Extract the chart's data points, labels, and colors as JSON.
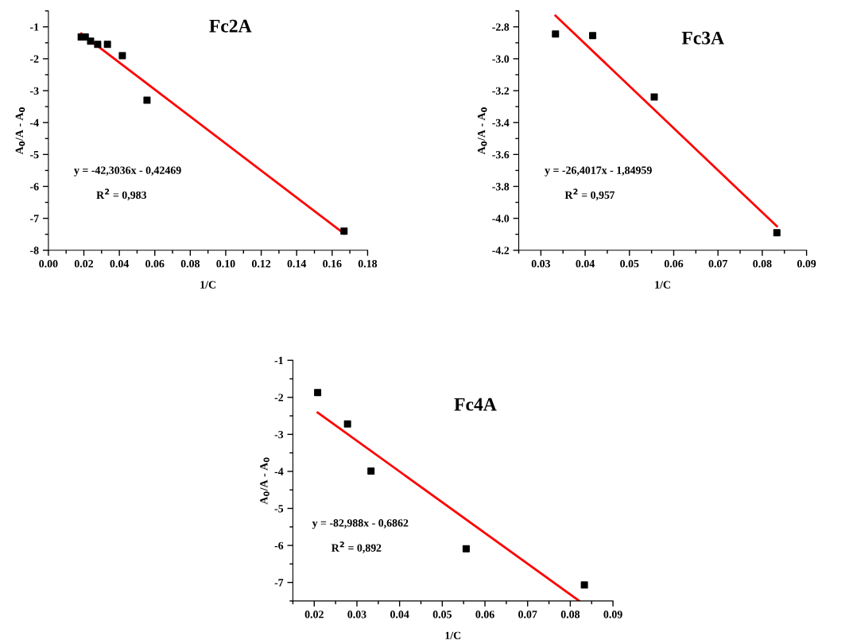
{
  "chart_data": [
    {
      "type": "scatter",
      "title": "Fc2A",
      "xlabel": "1/C",
      "ylabel": "A$_{0}$/A - A$_{0}$",
      "x": [
        0.0185,
        0.0208,
        0.0238,
        0.0278,
        0.0333,
        0.0417,
        0.0556,
        0.1667
      ],
      "series": [
        {
          "marker": "square",
          "color": "#000000",
          "values": [
            -1.32,
            -1.32,
            -1.45,
            -1.55,
            -1.55,
            -1.9,
            -3.3,
            -7.4
          ]
        },
        {
          "type": "line",
          "marker": "none",
          "color": "#ff0000",
          "x": [
            0.0185,
            0.1667
          ],
          "values": [
            -1.21,
            -7.48
          ]
        }
      ],
      "xlim": [
        0,
        0.18
      ],
      "xticks": [
        {
          "value": 0,
          "label": "0.00"
        },
        0.02,
        0.04,
        0.06,
        0.08,
        {
          "value": 0.1,
          "label": "0.10"
        },
        0.12,
        0.14,
        0.16,
        0.18
      ],
      "ylim": [
        -8,
        -0.5
      ],
      "yticks": [
        -8,
        -7,
        -6,
        -5,
        -4,
        -3,
        -2,
        -1
      ],
      "annotations": [
        "y = -42,3036x - 0,42469",
        "R$^{2}$ = 0,983"
      ]
    },
    {
      "type": "scatter",
      "title": "Fc3A",
      "xlabel": "1/C",
      "ylabel": "A$_{0}$/A - A$_{0}$",
      "x": [
        0.0333,
        0.0417,
        0.0556,
        0.0833
      ],
      "series": [
        {
          "marker": "square",
          "color": "#000000",
          "values": [
            -2.845,
            -2.855,
            -3.24,
            -4.09
          ]
        },
        {
          "type": "line",
          "marker": "none",
          "color": "#ff0000",
          "x": [
            0.0333,
            0.0833
          ],
          "values": [
            -2.73,
            -4.05
          ]
        }
      ],
      "xlim": [
        0.025,
        0.09
      ],
      "xticks": [
        0.03,
        0.04,
        0.05,
        0.06,
        0.07,
        0.08,
        0.09
      ],
      "ylim": [
        -4.2,
        -2.7
      ],
      "yticks": [
        {
          "value": -4.2,
          "label": "-4.2"
        },
        {
          "value": -4.0,
          "label": "-4.0"
        },
        {
          "value": -3.8,
          "label": "-3.8"
        },
        {
          "value": -3.6,
          "label": "-3.6"
        },
        {
          "value": -3.4,
          "label": "-3.4"
        },
        {
          "value": -3.2,
          "label": "-3.2"
        },
        {
          "value": -3.0,
          "label": "-3.0"
        },
        {
          "value": -2.8,
          "label": "-2.8"
        }
      ],
      "annotations": [
        "y = -26,4017x - 1,84959",
        "R$^{2}$ = 0,957"
      ]
    },
    {
      "type": "scatter",
      "title": "Fc4A",
      "xlabel": "1/C",
      "ylabel": "A$_{0}$/A - A$_{0}$",
      "x": [
        0.0208,
        0.0278,
        0.0333,
        0.0556,
        0.0833
      ],
      "series": [
        {
          "marker": "square",
          "color": "#000000",
          "values": [
            -1.87,
            -2.72,
            -3.99,
            -6.09,
            -7.07
          ]
        },
        {
          "type": "line",
          "marker": "none",
          "color": "#ff0000",
          "x": [
            0.0208,
            0.0821
          ],
          "values": [
            -2.41,
            -7.5
          ]
        }
      ],
      "xlim": [
        0.015,
        0.09
      ],
      "xticks": [
        0.02,
        0.03,
        0.04,
        0.05,
        0.06,
        0.07,
        0.08,
        0.09
      ],
      "ylim": [
        -7.5,
        -1
      ],
      "yticks": [
        -7,
        -6,
        -5,
        -4,
        -3,
        -2,
        -1
      ],
      "annotations": [
        "y = -82,988x - 0,6862",
        "R$^{2}$ = 0,892"
      ]
    }
  ]
}
